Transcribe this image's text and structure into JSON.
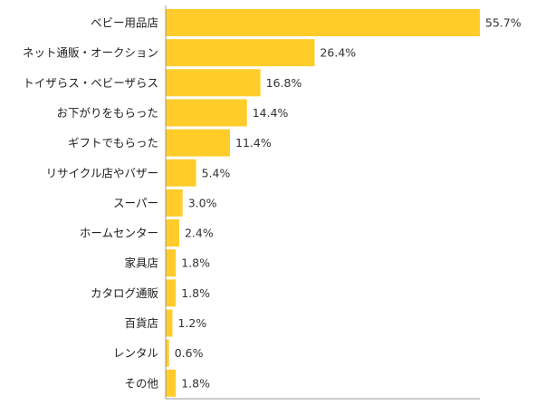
{
  "chart_data": {
    "type": "bar",
    "orientation": "horizontal",
    "categories": [
      "ベビー用品店",
      "ネット通販・オークション",
      "トイザらス・ベビーザらス",
      "お下がりをもらった",
      "ギフトでもらった",
      "リサイクル店やバザー",
      "スーパー",
      "ホームセンター",
      "家具店",
      "カタログ通販",
      "百貨店",
      "レンタル",
      "その他"
    ],
    "values": [
      55.7,
      26.4,
      16.8,
      14.4,
      11.4,
      5.4,
      3.0,
      2.4,
      1.8,
      1.8,
      1.2,
      0.6,
      1.8
    ],
    "value_labels": [
      "55.7%",
      "26.4%",
      "16.8%",
      "14.4%",
      "11.4%",
      "5.4%",
      "3.0%",
      "2.4%",
      "1.8%",
      "1.8%",
      "1.2%",
      "0.6%",
      "1.8%"
    ],
    "xlim": [
      0,
      55.7
    ],
    "grid": false,
    "legend": "none",
    "colors": {
      "bar": "#FFCC2A",
      "axis": "#999999",
      "text": "#222222"
    }
  }
}
